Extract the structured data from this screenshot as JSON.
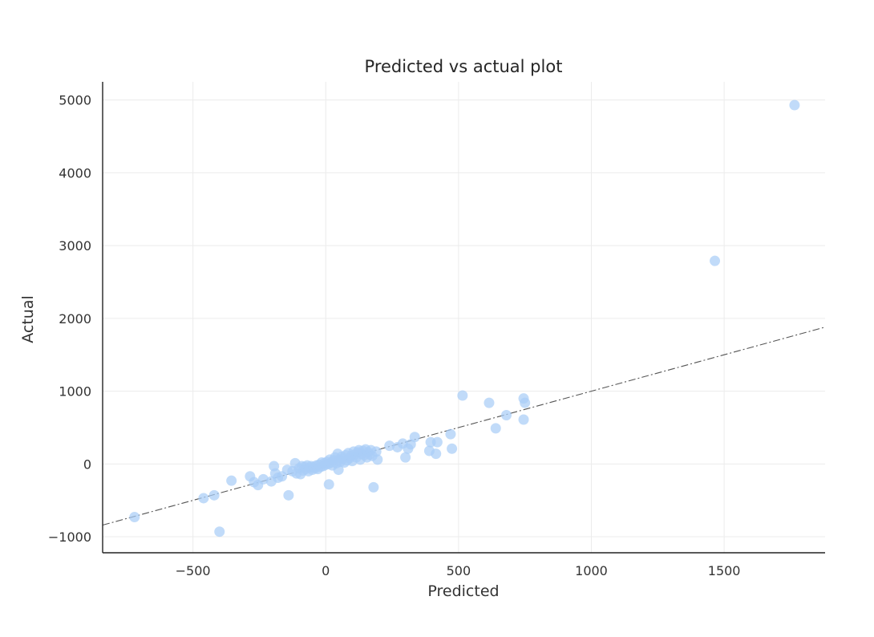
{
  "chart_data": {
    "type": "scatter",
    "title": "Predicted vs actual plot",
    "xlabel": "Predicted",
    "ylabel": "Actual",
    "xlim": [
      -840,
      1880
    ],
    "ylim": [
      -1220,
      5250
    ],
    "xticks": [
      -500,
      0,
      500,
      1000,
      1500
    ],
    "xtick_labels": [
      "−500",
      "0",
      "500",
      "1000",
      "1500"
    ],
    "yticks": [
      -1000,
      0,
      1000,
      2000,
      3000,
      4000,
      5000
    ],
    "ytick_labels": [
      "−1000",
      "0",
      "1000",
      "2000",
      "3000",
      "4000",
      "5000"
    ],
    "grid": true,
    "reference_line": {
      "style": "dash-dot",
      "from": [
        -840,
        -840
      ],
      "to": [
        1880,
        1880
      ]
    },
    "point_color": "#a9cdf7",
    "points": [
      [
        -720,
        -730
      ],
      [
        -460,
        -470
      ],
      [
        -420,
        -430
      ],
      [
        -400,
        -930
      ],
      [
        -355,
        -230
      ],
      [
        -285,
        -170
      ],
      [
        -270,
        -250
      ],
      [
        -255,
        -290
      ],
      [
        -235,
        -210
      ],
      [
        -205,
        -240
      ],
      [
        -195,
        -30
      ],
      [
        -190,
        -130
      ],
      [
        -180,
        -190
      ],
      [
        -165,
        -170
      ],
      [
        -145,
        -80
      ],
      [
        -140,
        -430
      ],
      [
        -125,
        -100
      ],
      [
        -115,
        10
      ],
      [
        -110,
        -130
      ],
      [
        -100,
        -60
      ],
      [
        -95,
        -140
      ],
      [
        -90,
        -30
      ],
      [
        -85,
        -90
      ],
      [
        -80,
        -40
      ],
      [
        -75,
        -70
      ],
      [
        -70,
        -20
      ],
      [
        -65,
        -100
      ],
      [
        -60,
        -50
      ],
      [
        -55,
        -30
      ],
      [
        -50,
        -80
      ],
      [
        -45,
        -40
      ],
      [
        -40,
        -60
      ],
      [
        -35,
        -20
      ],
      [
        -30,
        -70
      ],
      [
        -25,
        -10
      ],
      [
        -20,
        -40
      ],
      [
        -15,
        20
      ],
      [
        -10,
        -30
      ],
      [
        -5,
        10
      ],
      [
        0,
        -10
      ],
      [
        5,
        30
      ],
      [
        10,
        0
      ],
      [
        12,
        -280
      ],
      [
        15,
        60
      ],
      [
        20,
        20
      ],
      [
        25,
        -20
      ],
      [
        30,
        50
      ],
      [
        35,
        90
      ],
      [
        40,
        10
      ],
      [
        45,
        140
      ],
      [
        48,
        -80
      ],
      [
        50,
        60
      ],
      [
        55,
        30
      ],
      [
        60,
        100
      ],
      [
        65,
        70
      ],
      [
        70,
        20
      ],
      [
        75,
        120
      ],
      [
        80,
        50
      ],
      [
        85,
        150
      ],
      [
        90,
        80
      ],
      [
        95,
        110
      ],
      [
        100,
        40
      ],
      [
        105,
        170
      ],
      [
        110,
        130
      ],
      [
        115,
        90
      ],
      [
        120,
        160
      ],
      [
        125,
        190
      ],
      [
        130,
        60
      ],
      [
        135,
        140
      ],
      [
        140,
        180
      ],
      [
        145,
        120
      ],
      [
        150,
        200
      ],
      [
        155,
        90
      ],
      [
        160,
        160
      ],
      [
        165,
        130
      ],
      [
        170,
        190
      ],
      [
        175,
        110
      ],
      [
        180,
        -320
      ],
      [
        190,
        170
      ],
      [
        195,
        60
      ],
      [
        240,
        250
      ],
      [
        270,
        230
      ],
      [
        290,
        280
      ],
      [
        300,
        90
      ],
      [
        310,
        210
      ],
      [
        320,
        270
      ],
      [
        335,
        370
      ],
      [
        390,
        180
      ],
      [
        395,
        300
      ],
      [
        415,
        140
      ],
      [
        420,
        300
      ],
      [
        470,
        410
      ],
      [
        475,
        210
      ],
      [
        515,
        940
      ],
      [
        615,
        840
      ],
      [
        640,
        490
      ],
      [
        680,
        670
      ],
      [
        745,
        610
      ],
      [
        745,
        900
      ],
      [
        750,
        840
      ],
      [
        1465,
        2790
      ],
      [
        1765,
        4930
      ]
    ]
  }
}
